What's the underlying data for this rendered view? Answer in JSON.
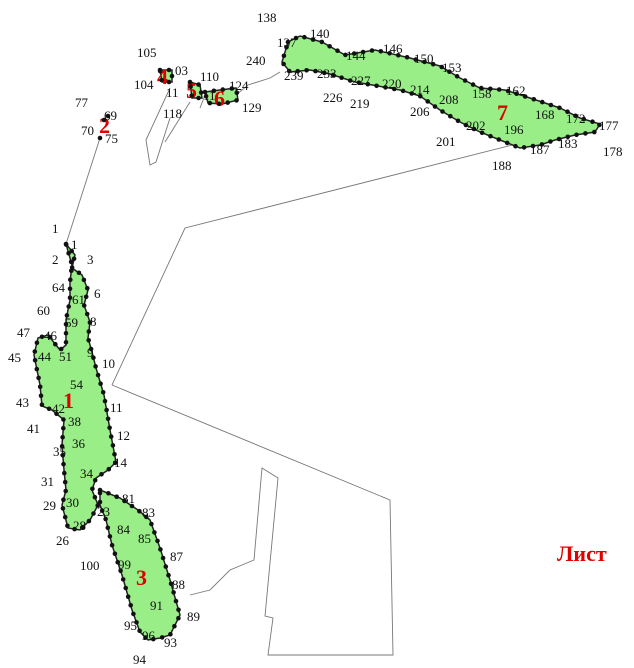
{
  "sheet_label": "Лист",
  "colors": {
    "parcel_fill": "#99ee88",
    "boundary": "#777777",
    "parcel_number": "#e00000",
    "point": "#111111"
  },
  "parcels": [
    {
      "id": "1",
      "label": "1"
    },
    {
      "id": "2",
      "label": "2"
    },
    {
      "id": "3",
      "label": "3"
    },
    {
      "id": "4",
      "label": "4"
    },
    {
      "id": "5",
      "label": "5"
    },
    {
      "id": "6",
      "label": "6"
    },
    {
      "id": "7",
      "label": "7"
    }
  ],
  "point_labels": {
    "p1a": "1",
    "p1b": "1",
    "p2": "2",
    "p3": "3",
    "p6": "6",
    "p8": "8",
    "p9": "9",
    "p10": "10",
    "p11": "11",
    "p12": "12",
    "p14": "14",
    "p23": "23",
    "p26": "26",
    "p28": "28",
    "p29": "29",
    "p30": "30",
    "p31": "31",
    "p34": "34",
    "p35": "35",
    "p36": "36",
    "p38": "38",
    "p41": "41",
    "p42": "42",
    "p43": "43",
    "p44": "44",
    "p45": "45",
    "p46": "46",
    "p47": "47",
    "p51": "51",
    "p54": "54",
    "p59": "59",
    "p60": "60",
    "p61": "61",
    "p64": "64",
    "p69": "69",
    "p70": "70",
    "p75": "75",
    "p77": "77",
    "p81": "81",
    "p83": "83",
    "p84": "84",
    "p85": "85",
    "p87": "87",
    "p88": "88",
    "p89": "89",
    "p91": "91",
    "p93": "93",
    "p94": "94",
    "p95": "95",
    "p96": "96",
    "p99": "99",
    "p100": "100",
    "p103": "03",
    "p104": "104",
    "p105": "105",
    "p110": "110",
    "p111": "11",
    "p113": "11",
    "p118": "118",
    "p124": "124",
    "p129": "129",
    "p137": "137",
    "p138": "138",
    "p140": "140",
    "p144": "144",
    "p146": "146",
    "p150": "150",
    "p153": "153",
    "p158": "158",
    "p162": "162",
    "p168": "168",
    "p172": "172",
    "p177": "177",
    "p178": "178",
    "p183": "183",
    "p187": "187",
    "p188": "188",
    "p196": "196",
    "p201": "201",
    "p202": "202",
    "p206": "206",
    "p208": "208",
    "p214": "214",
    "p219": "219",
    "p220": "220",
    "p226": "226",
    "p227": "227",
    "p233": "233",
    "p239": "239",
    "p240": "240"
  }
}
